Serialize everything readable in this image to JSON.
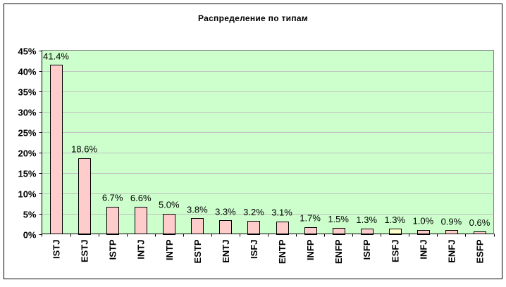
{
  "chart_data": {
    "type": "bar",
    "title": "Распределение по типам",
    "xlabel": "",
    "ylabel": "",
    "categories": [
      "ISTJ",
      "ESTJ",
      "ISTP",
      "INTJ",
      "INTP",
      "ESTP",
      "ENTJ",
      "ISFJ",
      "ENTP",
      "INFP",
      "ENFP",
      "ISFP",
      "ESFJ",
      "INFJ",
      "ENFJ",
      "ESFP"
    ],
    "values": [
      41.4,
      18.6,
      6.7,
      6.6,
      5.0,
      3.8,
      3.3,
      3.2,
      3.1,
      1.7,
      1.5,
      1.3,
      1.3,
      1.0,
      0.9,
      0.6
    ],
    "data_labels": [
      "41.4%",
      "18.6%",
      "6.7%",
      "6.6%",
      "5.0%",
      "3.8%",
      "3.3%",
      "3.2%",
      "3.1%",
      "1.7%",
      "1.5%",
      "1.3%",
      "1.3%",
      "1.0%",
      "0.9%",
      "0.6%"
    ],
    "ylim": [
      0,
      45
    ],
    "yticks": [
      "0%",
      "5%",
      "10%",
      "15%",
      "20%",
      "25%",
      "30%",
      "35%",
      "40%",
      "45%"
    ],
    "grid": true,
    "legend": "none",
    "colors": {
      "plot_background": "#CCFFCC",
      "bar": "#FFCCCC",
      "bar_highlight": "#FFFFCC",
      "highlight_category": "ESFJ",
      "gridline": "#C0C0C0"
    }
  }
}
